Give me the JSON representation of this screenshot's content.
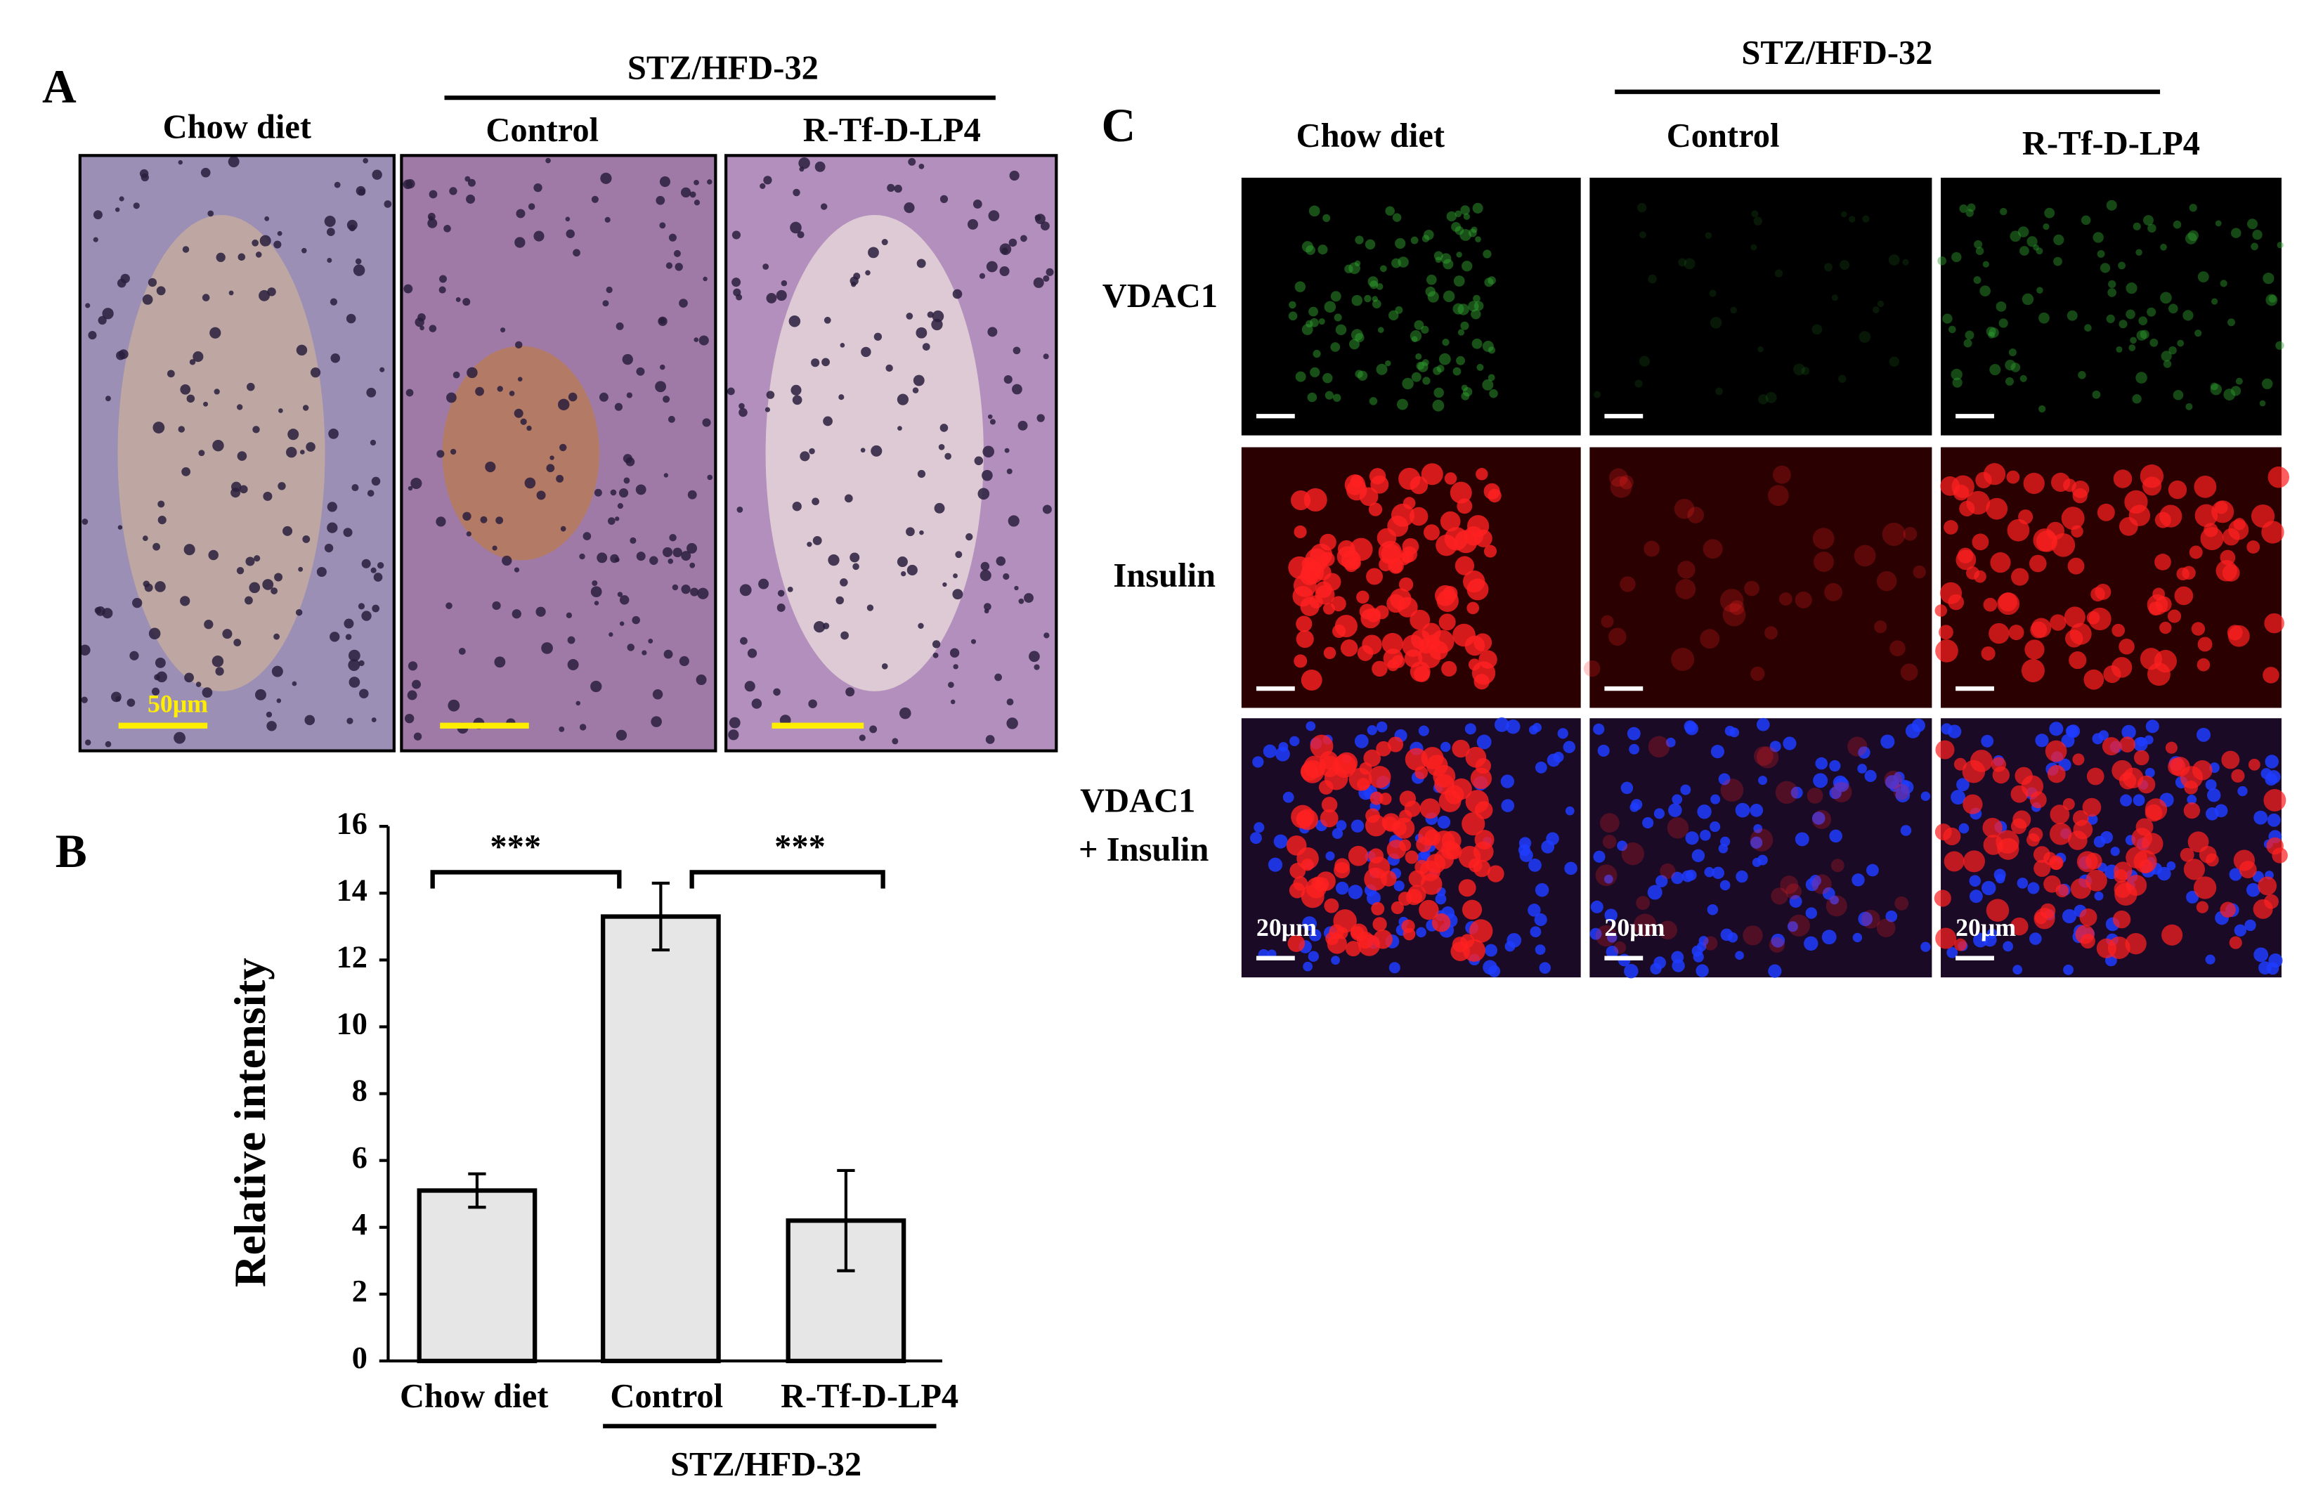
{
  "panel_a": {
    "label": "A",
    "group": "STZ/HFD-32",
    "columns": [
      "Chow diet",
      "Control",
      "R-Tf-D-LP4"
    ],
    "scale_bar": "50μm"
  },
  "chart_data": {
    "type": "bar",
    "panel_label": "B",
    "y_label": "Relative intensity",
    "categories": [
      "Chow diet",
      "Control",
      "R-Tf-D-LP4"
    ],
    "values": [
      5.1,
      13.3,
      4.2
    ],
    "errors": [
      0.5,
      1.0,
      1.5
    ],
    "color": "#e6e6e6",
    "ylim": [
      0,
      16
    ],
    "yticks": [
      0,
      2,
      4,
      6,
      8,
      10,
      12,
      14,
      16
    ],
    "group_label": "STZ/HFD-32",
    "significance": [
      "***",
      "***"
    ]
  },
  "panel_c": {
    "label": "C",
    "group": "STZ/HFD-32",
    "columns": [
      "Chow diet",
      "Control",
      "R-Tf-D-LP4"
    ],
    "rows": [
      [
        "VDAC1"
      ],
      [
        "Insulin"
      ],
      [
        "VDAC1",
        "+ Insulin"
      ]
    ],
    "scale_bar": "20μm"
  }
}
